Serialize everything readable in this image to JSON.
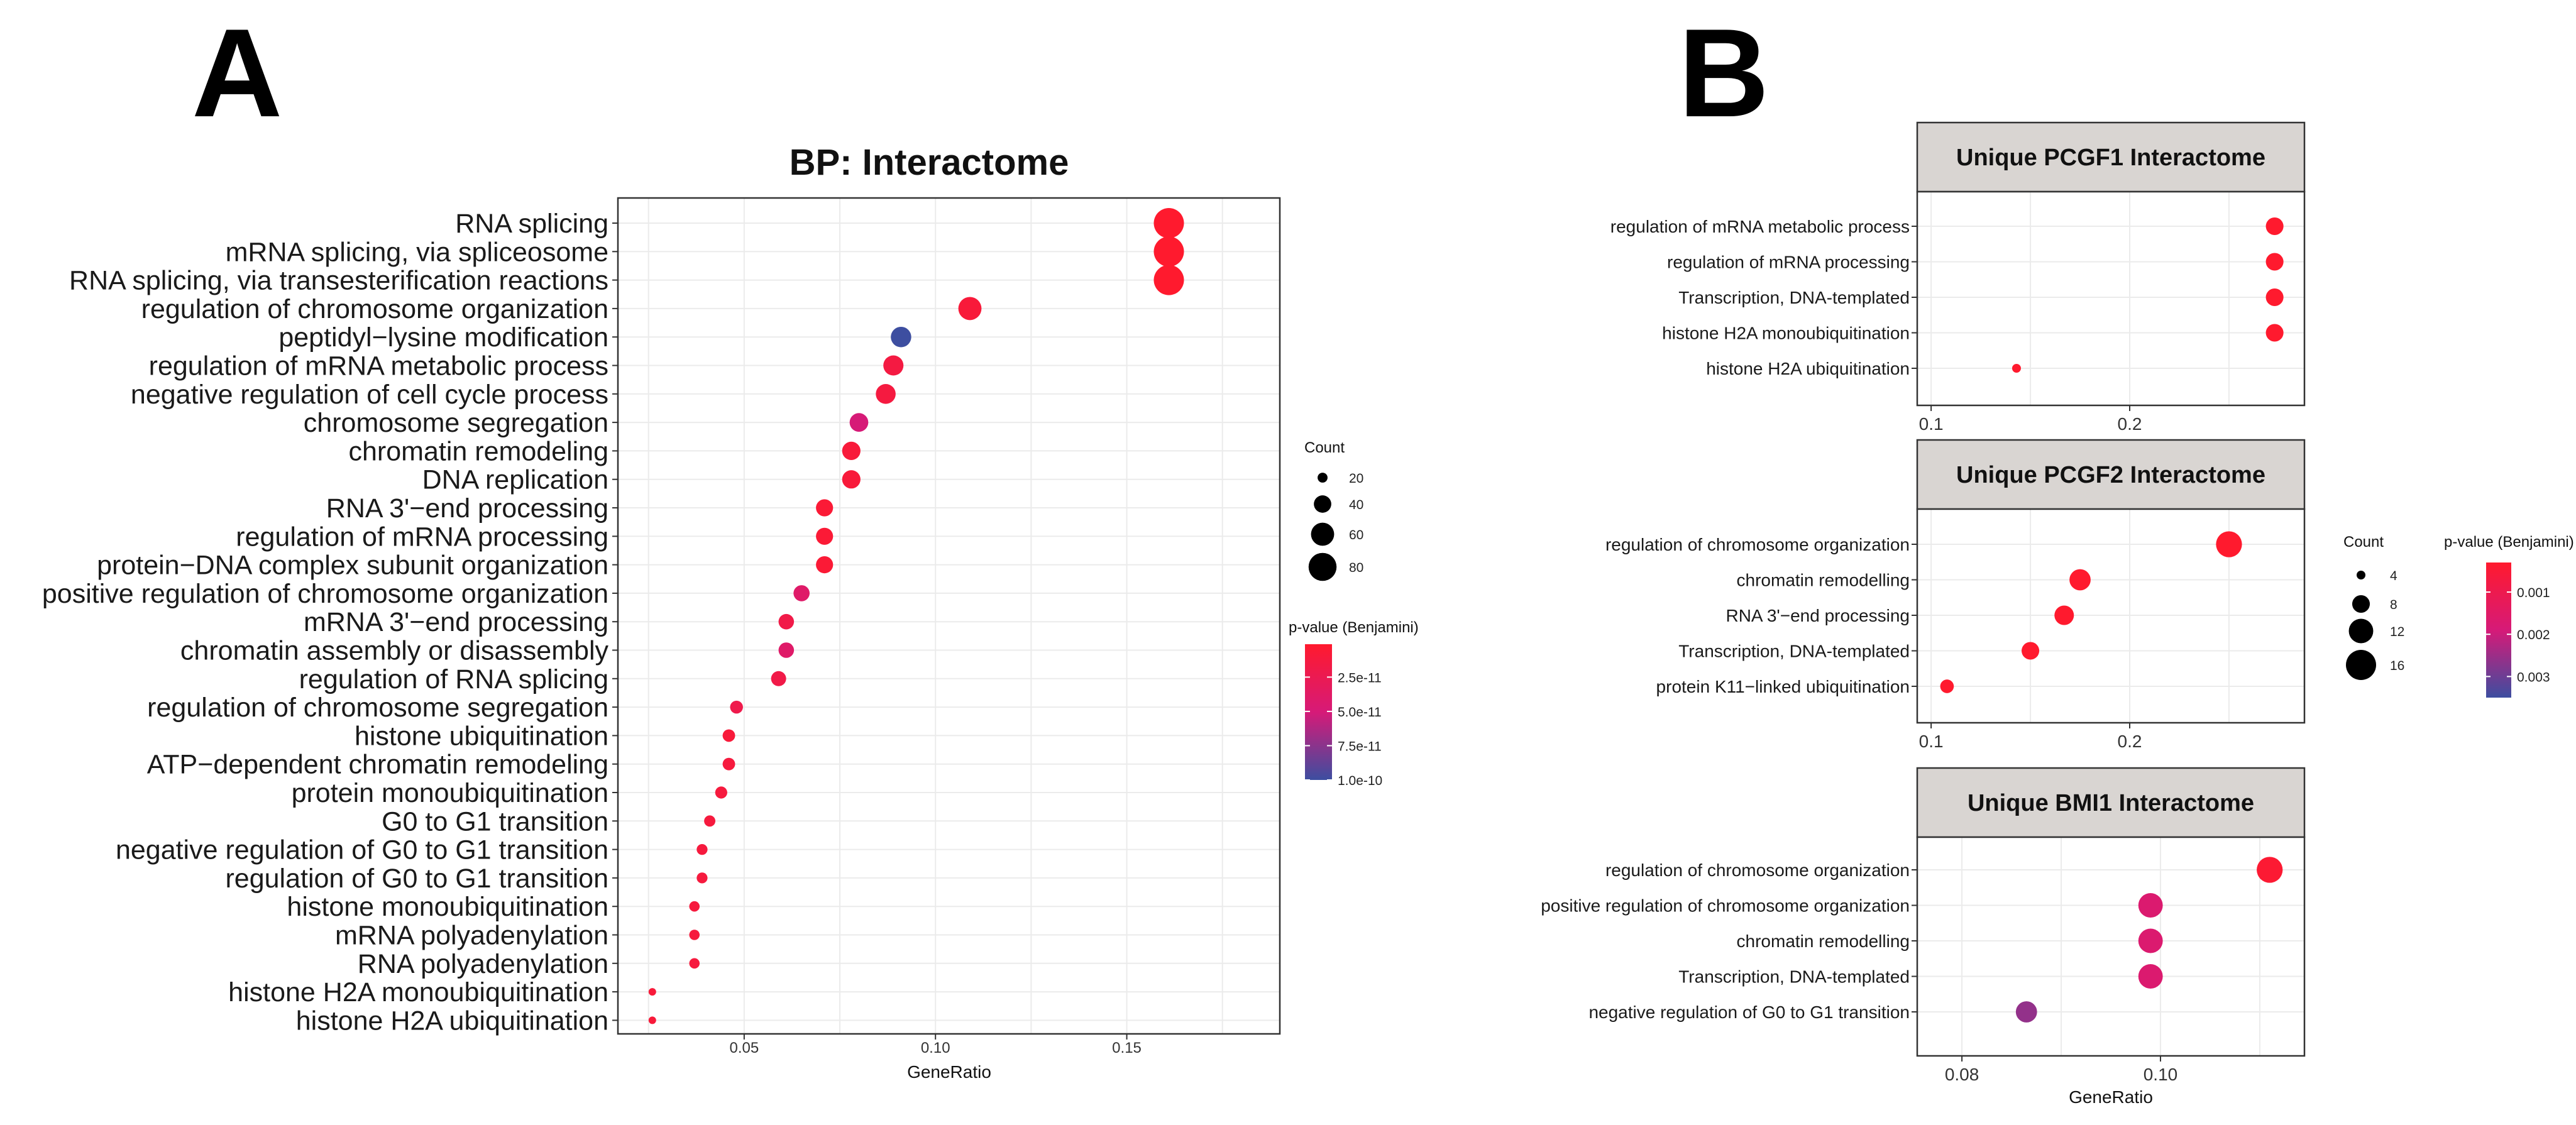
{
  "panel_labels": {
    "a": "A",
    "b": "B"
  },
  "colors": {
    "low": "#ff1a2e",
    "mid": "#d61a78",
    "high": "#3d4ea0",
    "grid": "#ebebeb",
    "strip": "#d9d5d2"
  },
  "chart_data": [
    {
      "id": "A",
      "type": "scatter",
      "title": "BP: Interactome",
      "xlabel": "GeneRatio",
      "ylabel": "",
      "xlim": [
        0.017,
        0.19
      ],
      "xticks": [
        0.05,
        0.1,
        0.15
      ],
      "xtick_labels": [
        "0.05",
        "0.10",
        "0.15"
      ],
      "categories": [
        "RNA splicing",
        "mRNA splicing, via spliceosome",
        "RNA splicing, via transesterification reactions",
        "regulation of chromosome organization",
        "peptidyl−lysine modification",
        "regulation of mRNA metabolic process",
        "negative regulation of cell cycle process",
        "chromosome segregation",
        "chromatin remodeling",
        "DNA replication",
        "RNA 3'−end processing",
        "regulation of mRNA processing",
        "protein−DNA complex subunit organization",
        "positive regulation of chromosome organization",
        "mRNA 3'−end processing",
        "chromatin assembly or disassembly",
        "regulation of RNA splicing",
        "regulation of chromosome segregation",
        "histone ubiquitination",
        "ATP−dependent chromatin remodeling",
        "protein monoubiquitination",
        "G0 to G1 transition",
        "negative regulation of G0 to G1 transition",
        "regulation of G0 to G1 transition",
        "histone monoubiquitination",
        "mRNA polyadenylation",
        "RNA polyadenylation",
        "histone H2A monoubiquitination",
        "histone H2A ubiquitination"
      ],
      "gene_ratio": [
        0.161,
        0.161,
        0.161,
        0.109,
        0.091,
        0.089,
        0.087,
        0.08,
        0.078,
        0.078,
        0.071,
        0.071,
        0.071,
        0.065,
        0.061,
        0.061,
        0.059,
        0.048,
        0.046,
        0.046,
        0.044,
        0.041,
        0.039,
        0.039,
        0.037,
        0.037,
        0.037,
        0.026,
        0.026
      ],
      "count": [
        90,
        90,
        90,
        60,
        50,
        49,
        48,
        44,
        43,
        43,
        39,
        39,
        39,
        36,
        34,
        34,
        33,
        27,
        26,
        26,
        25,
        23,
        22,
        22,
        21,
        21,
        21,
        15,
        15
      ],
      "p_adjust": [
        1e-12,
        1e-12,
        1e-12,
        3e-12,
        1e-10,
        6e-12,
        5e-12,
        5e-11,
        3e-12,
        3e-12,
        2e-12,
        2e-12,
        2e-12,
        4e-11,
        1e-11,
        4e-11,
        1e-11,
        1.5e-11,
        3e-12,
        4e-12,
        4e-12,
        4e-12,
        4e-12,
        4e-12,
        4e-12,
        4e-12,
        4e-12,
        3e-12,
        3e-12
      ],
      "legend_size": {
        "title": "Count",
        "values": [
          20,
          40,
          60,
          80
        ],
        "labels": [
          "20",
          "40",
          "60",
          "80"
        ]
      },
      "legend_color": {
        "title": "p-value (Benjamini)",
        "min": 1e-12,
        "max": 1e-10,
        "ticks": [
          2.5e-11,
          5e-11,
          7.5e-11,
          1e-10
        ],
        "tick_labels": [
          "2.5e-11",
          "5.0e-11",
          "7.5e-11",
          "1.0e-10"
        ]
      }
    },
    {
      "id": "B1",
      "type": "scatter",
      "title": "Unique PCGF1 Interactome",
      "xlabel": "",
      "xlim": [
        0.093,
        0.288
      ],
      "xticks": [
        0.1,
        0.2
      ],
      "xtick_labels": [
        "0.1",
        "0.2"
      ],
      "categories": [
        "regulation of mRNA metabolic process",
        "regulation of mRNA processing",
        "Transcription, DNA-templated",
        "histone H2A monoubiquitination",
        "histone H2A ubiquitination"
      ],
      "gene_ratio": [
        0.273,
        0.273,
        0.273,
        0.273,
        0.143
      ],
      "count": [
        8,
        8,
        8,
        8,
        4
      ],
      "p_adjust": [
        0.0003,
        0.0003,
        0.0003,
        0.0003,
        0.0003
      ]
    },
    {
      "id": "B2",
      "type": "scatter",
      "title": "Unique PCGF2 Interactome",
      "xlabel": "",
      "xlim": [
        0.093,
        0.288
      ],
      "xticks": [
        0.1,
        0.2
      ],
      "xtick_labels": [
        "0.1",
        "0.2"
      ],
      "categories": [
        "regulation of chromosome organization",
        "chromatin remodelling",
        "RNA 3'−end processing",
        "Transcription, DNA-templated",
        "protein K11−linked ubiquitination"
      ],
      "gene_ratio": [
        0.25,
        0.175,
        0.167,
        0.15,
        0.108
      ],
      "count": [
        13,
        10,
        9,
        8,
        6
      ],
      "p_adjust": [
        0.0003,
        0.0003,
        0.0003,
        0.0003,
        0.0003
      ],
      "legend_size": {
        "title": "Count",
        "values": [
          4,
          8,
          12,
          16
        ],
        "labels": [
          "4",
          "8",
          "12",
          "16"
        ]
      },
      "legend_color": {
        "title": "p-value (Benjamini)",
        "min": 0.0003,
        "max": 0.0035,
        "ticks": [
          0.001,
          0.002,
          0.003
        ],
        "tick_labels": [
          "0.001",
          "0.002",
          "0.003"
        ]
      }
    },
    {
      "id": "B3",
      "type": "scatter",
      "title": "Unique BMI1 Interactome",
      "xlabel": "GeneRatio",
      "xlim": [
        0.0755,
        0.1145
      ],
      "xticks": [
        0.08,
        0.1
      ],
      "xtick_labels": [
        "0.08",
        "0.10"
      ],
      "categories": [
        "regulation of chromosome organization",
        "positive regulation of chromosome organization",
        "chromatin remodelling",
        "Transcription, DNA-templated",
        "negative regulation of G0 to G1 transition"
      ],
      "gene_ratio": [
        0.111,
        0.099,
        0.099,
        0.099,
        0.0865
      ],
      "count": [
        13,
        12,
        12,
        12,
        10
      ],
      "p_adjust": [
        0.0004,
        0.0017,
        0.0017,
        0.0017,
        0.0026
      ]
    }
  ]
}
